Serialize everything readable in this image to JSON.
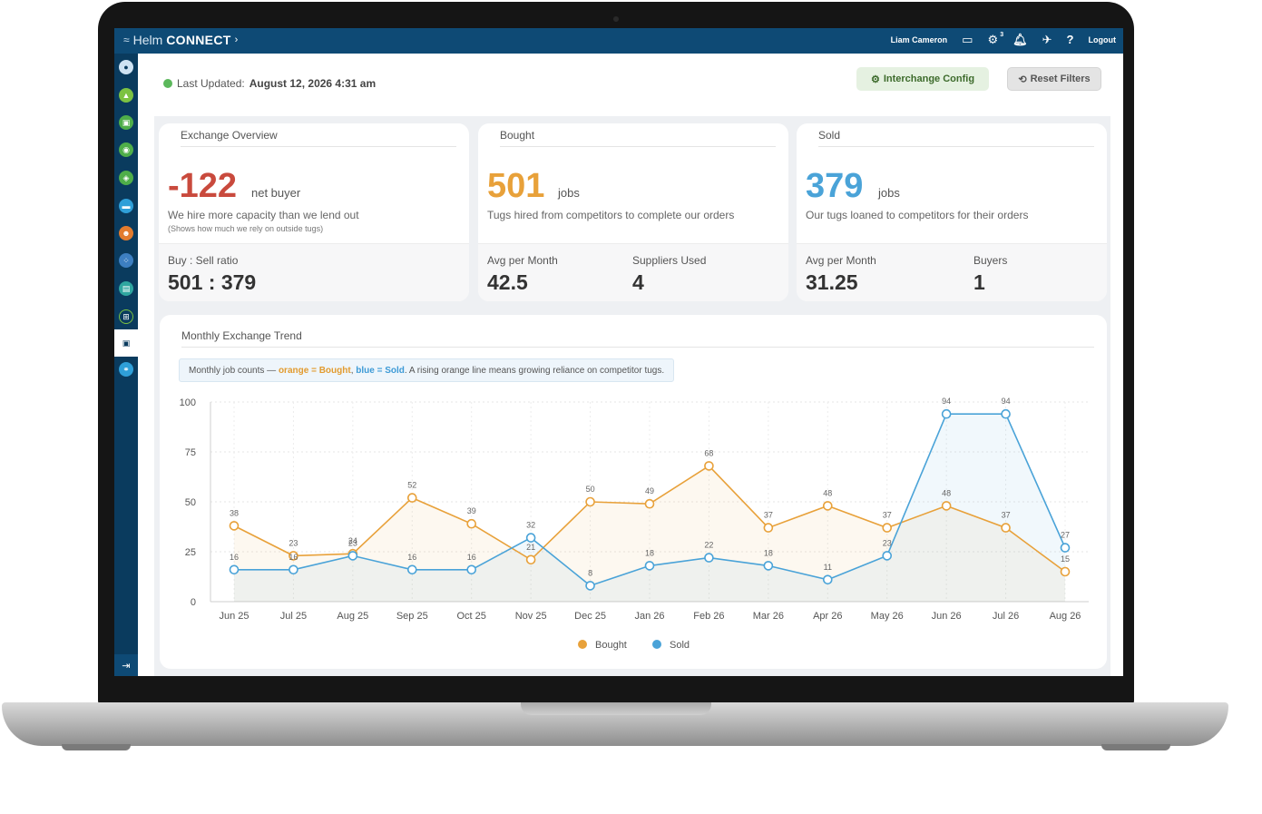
{
  "header": {
    "brand_helm": "Helm",
    "brand_connect": "CONNECT",
    "user_name": "Liam Cameron",
    "settings_badge": "3",
    "logout_label": "Logout"
  },
  "toolbar": {
    "last_updated_label": "Last Updated:",
    "last_updated_value": "August 12, 2026 4:31 am",
    "interchange_config_label": "Interchange Config",
    "reset_filters_label": "Reset Filters"
  },
  "cards": {
    "overview": {
      "title": "Exchange Overview",
      "value": "-122",
      "unit": "net buyer",
      "description": "We hire more capacity than we lend out",
      "note": "(Shows how much we rely on outside tugs)",
      "stat1_label": "Buy : Sell ratio",
      "stat1_value": "501 : 379"
    },
    "bought": {
      "title": "Bought",
      "value": "501",
      "unit": "jobs",
      "description": "Tugs hired from competitors to complete our orders",
      "stat1_label": "Avg per Month",
      "stat1_value": "42.5",
      "stat2_label": "Suppliers Used",
      "stat2_value": "4"
    },
    "sold": {
      "title": "Sold",
      "value": "379",
      "unit": "jobs",
      "description": "Our tugs loaned to competitors for their orders",
      "stat1_label": "Avg per Month",
      "stat1_value": "31.25",
      "stat2_label": "Buyers",
      "stat2_value": "1"
    }
  },
  "trend": {
    "title": "Monthly Exchange Trend",
    "note_prefix": "Monthly job counts — ",
    "note_orange": "orange = Bought",
    "note_sep": ", ",
    "note_blue": "blue = Sold",
    "note_suffix": ". A rising orange line means growing reliance on competitor tugs."
  },
  "colors": {
    "bought": "#e8a13a",
    "sold": "#4aa3d8",
    "negative": "#c94a3d"
  },
  "chart_data": {
    "type": "line",
    "categories": [
      "Jun 25",
      "Jul 25",
      "Aug 25",
      "Sep 25",
      "Oct 25",
      "Nov 25",
      "Dec 25",
      "Jan 26",
      "Feb 26",
      "Mar 26",
      "Apr 26",
      "May 26",
      "Jun 26",
      "Jul 26",
      "Aug 26"
    ],
    "series": [
      {
        "name": "Bought",
        "color": "#e8a13a",
        "values": [
          38,
          23,
          24,
          52,
          39,
          21,
          50,
          49,
          68,
          37,
          48,
          37,
          48,
          37,
          15
        ]
      },
      {
        "name": "Sold",
        "color": "#4aa3d8",
        "values": [
          16,
          16,
          23,
          16,
          16,
          32,
          8,
          18,
          22,
          18,
          11,
          23,
          94,
          94,
          27
        ]
      }
    ],
    "yticks": [
      0,
      25,
      50,
      75,
      100
    ],
    "ylim": [
      0,
      100
    ],
    "legend": "bottom-center",
    "grid": true
  }
}
